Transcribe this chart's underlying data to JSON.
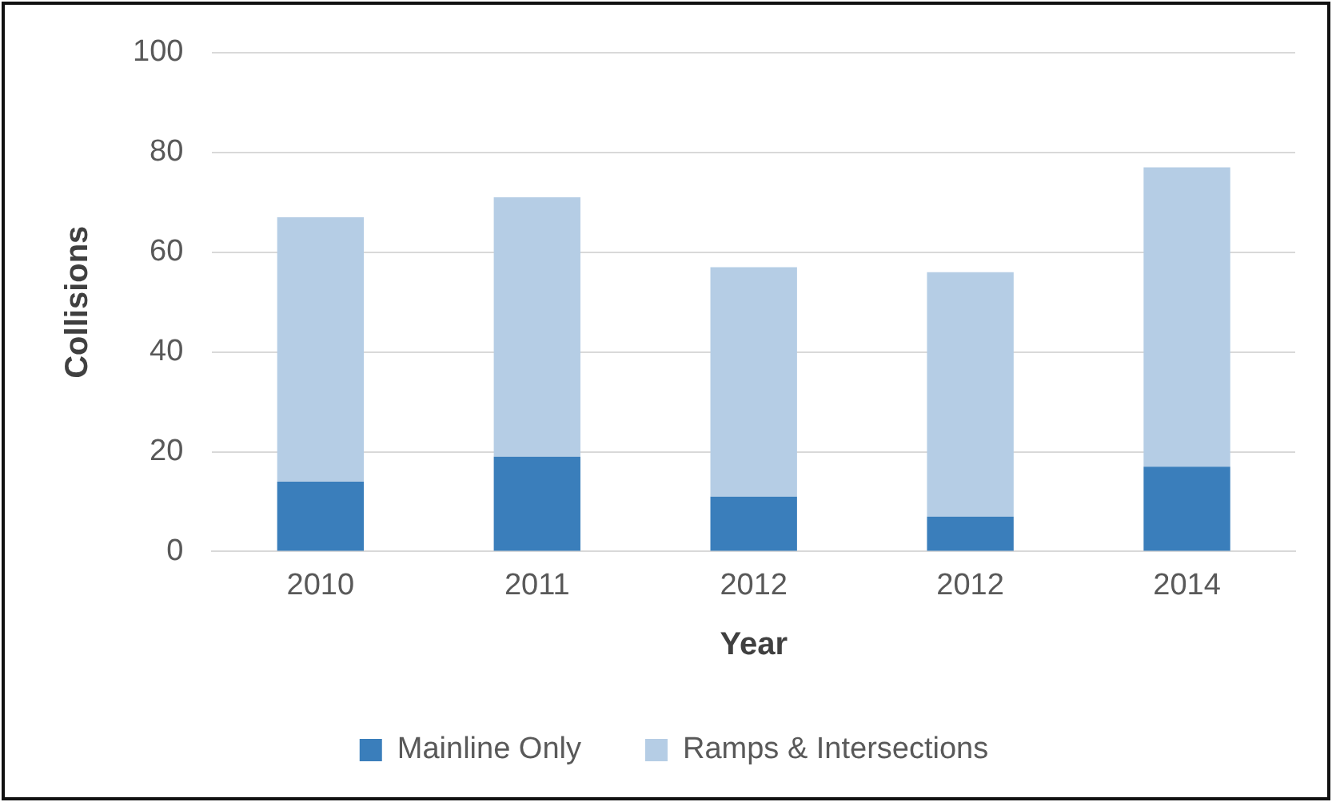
{
  "chart_data": {
    "type": "bar",
    "stacked": true,
    "xlabel": "Year",
    "ylabel": "Collisions",
    "categories": [
      "2010",
      "2011",
      "2012",
      "2012",
      "2014"
    ],
    "series": [
      {
        "name": "Mainline Only",
        "color": "#3a7ebb",
        "values": [
          14,
          19,
          11,
          7,
          17
        ]
      },
      {
        "name": "Ramps & Intersections",
        "color": "#b5cde5",
        "values": [
          53,
          52,
          46,
          49,
          60
        ]
      }
    ],
    "ylim": [
      0,
      100
    ],
    "yticks": [
      0,
      20,
      40,
      60,
      80,
      100
    ],
    "grid": "y",
    "legend": "bottom"
  }
}
